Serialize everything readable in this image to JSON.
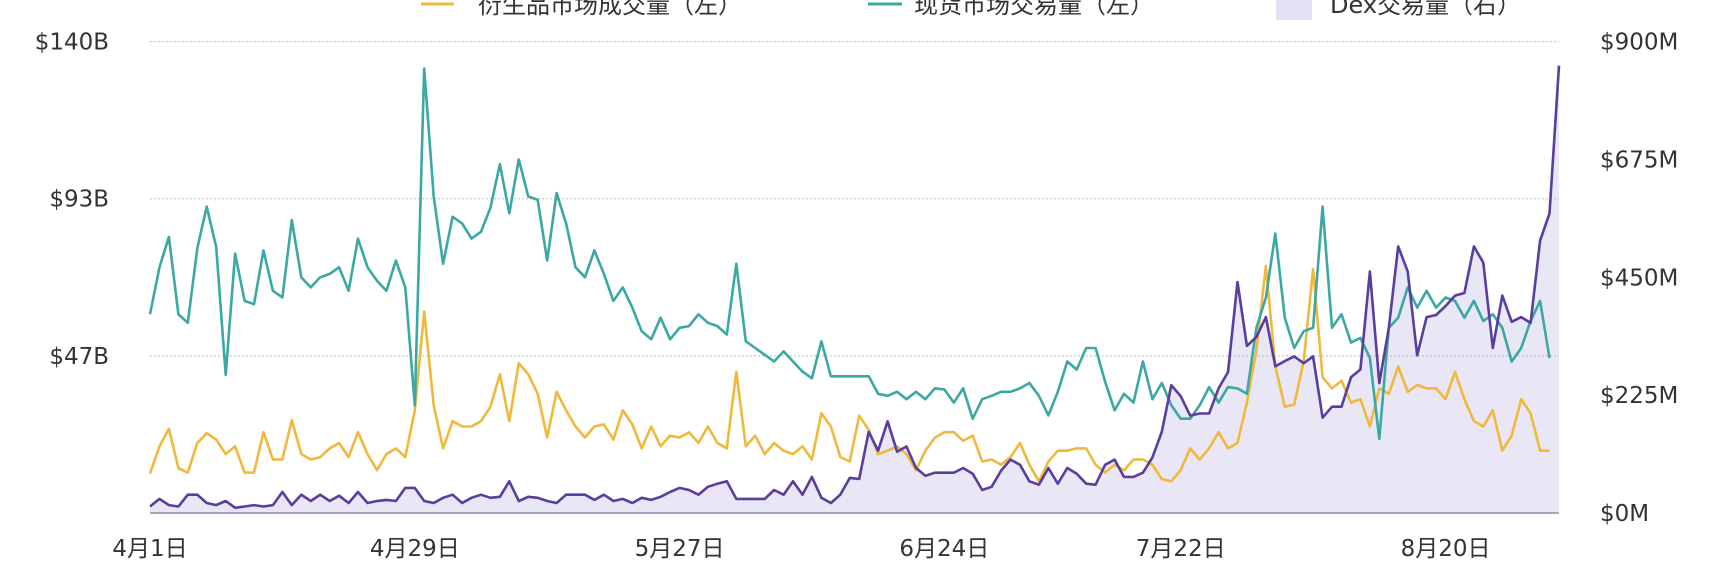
{
  "chart_data": {
    "type": "line",
    "legend_position": "top",
    "grid": true,
    "x_tick_labels": [
      {
        "index": 0,
        "label": "4月1日"
      },
      {
        "index": 28,
        "label": "4月29日"
      },
      {
        "index": 56,
        "label": "5月27日"
      },
      {
        "index": 84,
        "label": "6月24日"
      },
      {
        "index": 109,
        "label": "7月22日"
      },
      {
        "index": 137,
        "label": "8月20日"
      }
    ],
    "left_axis": {
      "ylim": [
        0,
        140
      ],
      "unit": "B",
      "ticks": [
        {
          "value": 140,
          "label": "$140B"
        },
        {
          "value": 93.33,
          "label": "$93B"
        },
        {
          "value": 46.67,
          "label": "$47B"
        }
      ]
    },
    "right_axis": {
      "ylim": [
        0,
        900
      ],
      "unit": "M",
      "ticks": [
        {
          "value": 900,
          "label": "$900M"
        },
        {
          "value": 675,
          "label": "$675M"
        },
        {
          "value": 450,
          "label": "$450M"
        },
        {
          "value": 225,
          "label": "$225M"
        },
        {
          "value": 0,
          "label": "$0M"
        }
      ]
    },
    "series": [
      {
        "name": "衍生品市场成交量（左）",
        "axis": "left",
        "style": "line",
        "color": "#f0b83c",
        "values": [
          11.7,
          19.8,
          25,
          13.3,
          12,
          20.8,
          23.7,
          21.8,
          17.5,
          19.8,
          12,
          12,
          24,
          15.9,
          15.9,
          27.6,
          17.5,
          15.9,
          16.6,
          19.2,
          20.8,
          16.6,
          24,
          17.5,
          12.7,
          17.5,
          19.2,
          16.6,
          30.5,
          59.8,
          32,
          19.2,
          27.3,
          25.7,
          25.7,
          27.3,
          31.5,
          41.2,
          27.3,
          44.5,
          41.2,
          35.4,
          22.4,
          36,
          30.5,
          25.7,
          22.4,
          25.7,
          26.3,
          21.8,
          30.5,
          26.3,
          19.2,
          25.7,
          19.8,
          23,
          22.4,
          24,
          20.8,
          25.7,
          20.8,
          19.2,
          41.9,
          19.8,
          23,
          17.5,
          20.8,
          18.5,
          17.5,
          19.8,
          15.9,
          29.6,
          25.7,
          16.6,
          15.3,
          28.9,
          24.7,
          17.5,
          18.5,
          19.8,
          17.5,
          12.7,
          18.5,
          22.4,
          24,
          24,
          21.4,
          23,
          15.3,
          15.9,
          14.3,
          16.6,
          20.8,
          14.3,
          9.4,
          15.3,
          18.5,
          18.5,
          19.2,
          19.2,
          14.3,
          12,
          14.3,
          12.7,
          15.9,
          15.9,
          14.3,
          10.1,
          9.4,
          12.7,
          19.2,
          15.9,
          19.2,
          24,
          19.2,
          20.8,
          32.8,
          48.4,
          73.4,
          43.5,
          31.5,
          32.2,
          45.1,
          72.4,
          40.3,
          37,
          39.3,
          32.8,
          33.8,
          25.7,
          37,
          35.4,
          43.5,
          36,
          38,
          37,
          37,
          33.8,
          41.9,
          33.8,
          27.3,
          25.7,
          30.5,
          18.5,
          23,
          33.8,
          29.6,
          18.5,
          18.5
        ]
      },
      {
        "name": "现货市场交易量（左）",
        "axis": "left",
        "style": "line",
        "color": "#3ba8a3",
        "values": [
          59,
          73,
          82,
          59,
          56.5,
          78.6,
          91,
          79,
          41,
          77,
          63,
          62,
          78,
          66,
          64,
          87,
          70,
          67,
          70,
          71,
          73,
          66,
          81.5,
          73,
          69,
          66,
          75,
          67,
          32,
          132,
          94,
          74,
          88,
          86,
          81.5,
          83.5,
          90.6,
          103.6,
          89,
          105,
          94,
          93,
          75,
          95,
          86,
          73,
          70,
          78,
          71,
          63,
          67,
          61,
          54,
          51.6,
          58,
          51.6,
          55,
          55.5,
          59,
          56.5,
          55.5,
          53,
          74,
          51,
          49,
          47,
          45,
          48,
          45,
          42,
          40,
          51,
          40.6,
          40.6,
          40.6,
          40.6,
          40.6,
          35.4,
          34.8,
          36,
          33.8,
          36,
          33.8,
          37,
          36.7,
          32.8,
          37,
          28,
          33.8,
          34.8,
          36,
          36,
          37,
          38.6,
          34.8,
          29,
          36,
          45,
          42.6,
          49,
          49,
          39,
          30.5,
          35.4,
          32.8,
          45,
          33.8,
          38.6,
          32,
          28,
          28,
          32,
          37.4,
          32.8,
          37.4,
          37,
          35.4,
          55,
          64,
          83,
          58,
          49,
          54,
          55,
          91,
          55,
          59,
          50.6,
          52,
          46,
          22,
          55,
          58,
          67,
          61,
          66,
          61,
          64,
          63,
          58,
          63,
          57,
          59,
          55,
          45,
          49,
          57,
          63,
          46
        ]
      },
      {
        "name": "Dex交易量（右）",
        "axis": "right",
        "style": "area",
        "color": "#5a3d9e",
        "fill": "#e9e7f6",
        "values": [
          12.5,
          27,
          15,
          12.5,
          35,
          35,
          19,
          15,
          23,
          10,
          12.5,
          15,
          12.5,
          15,
          40,
          15,
          35,
          23,
          35,
          23,
          33,
          19,
          40,
          19,
          23,
          25,
          23,
          48,
          48,
          23,
          19,
          29,
          35,
          19,
          29,
          35,
          29,
          31,
          60.5,
          23,
          31,
          29,
          23,
          19,
          35,
          35,
          35,
          25,
          35,
          23,
          27,
          19,
          29,
          25,
          31,
          40,
          48,
          44,
          35,
          50,
          56,
          60.5,
          27,
          27,
          27,
          27,
          44,
          35,
          60.5,
          35,
          69,
          29,
          19,
          35,
          67,
          65,
          155,
          119,
          175,
          117,
          127,
          86,
          71,
          77,
          77,
          77,
          86,
          75,
          44,
          50,
          81,
          102,
          92,
          60.5,
          54,
          86,
          56,
          86,
          75,
          56,
          54,
          92,
          102,
          69,
          69,
          77,
          106,
          155,
          244,
          223,
          186,
          190,
          190,
          238,
          269,
          441,
          319,
          336,
          374,
          280,
          290,
          299,
          286,
          299,
          182,
          203,
          203,
          259,
          274,
          461,
          248,
          353,
          509,
          461,
          301,
          374,
          378,
          395,
          415,
          420,
          509,
          478,
          315,
          415,
          365,
          374,
          363,
          520,
          572,
          854
        ]
      }
    ]
  }
}
